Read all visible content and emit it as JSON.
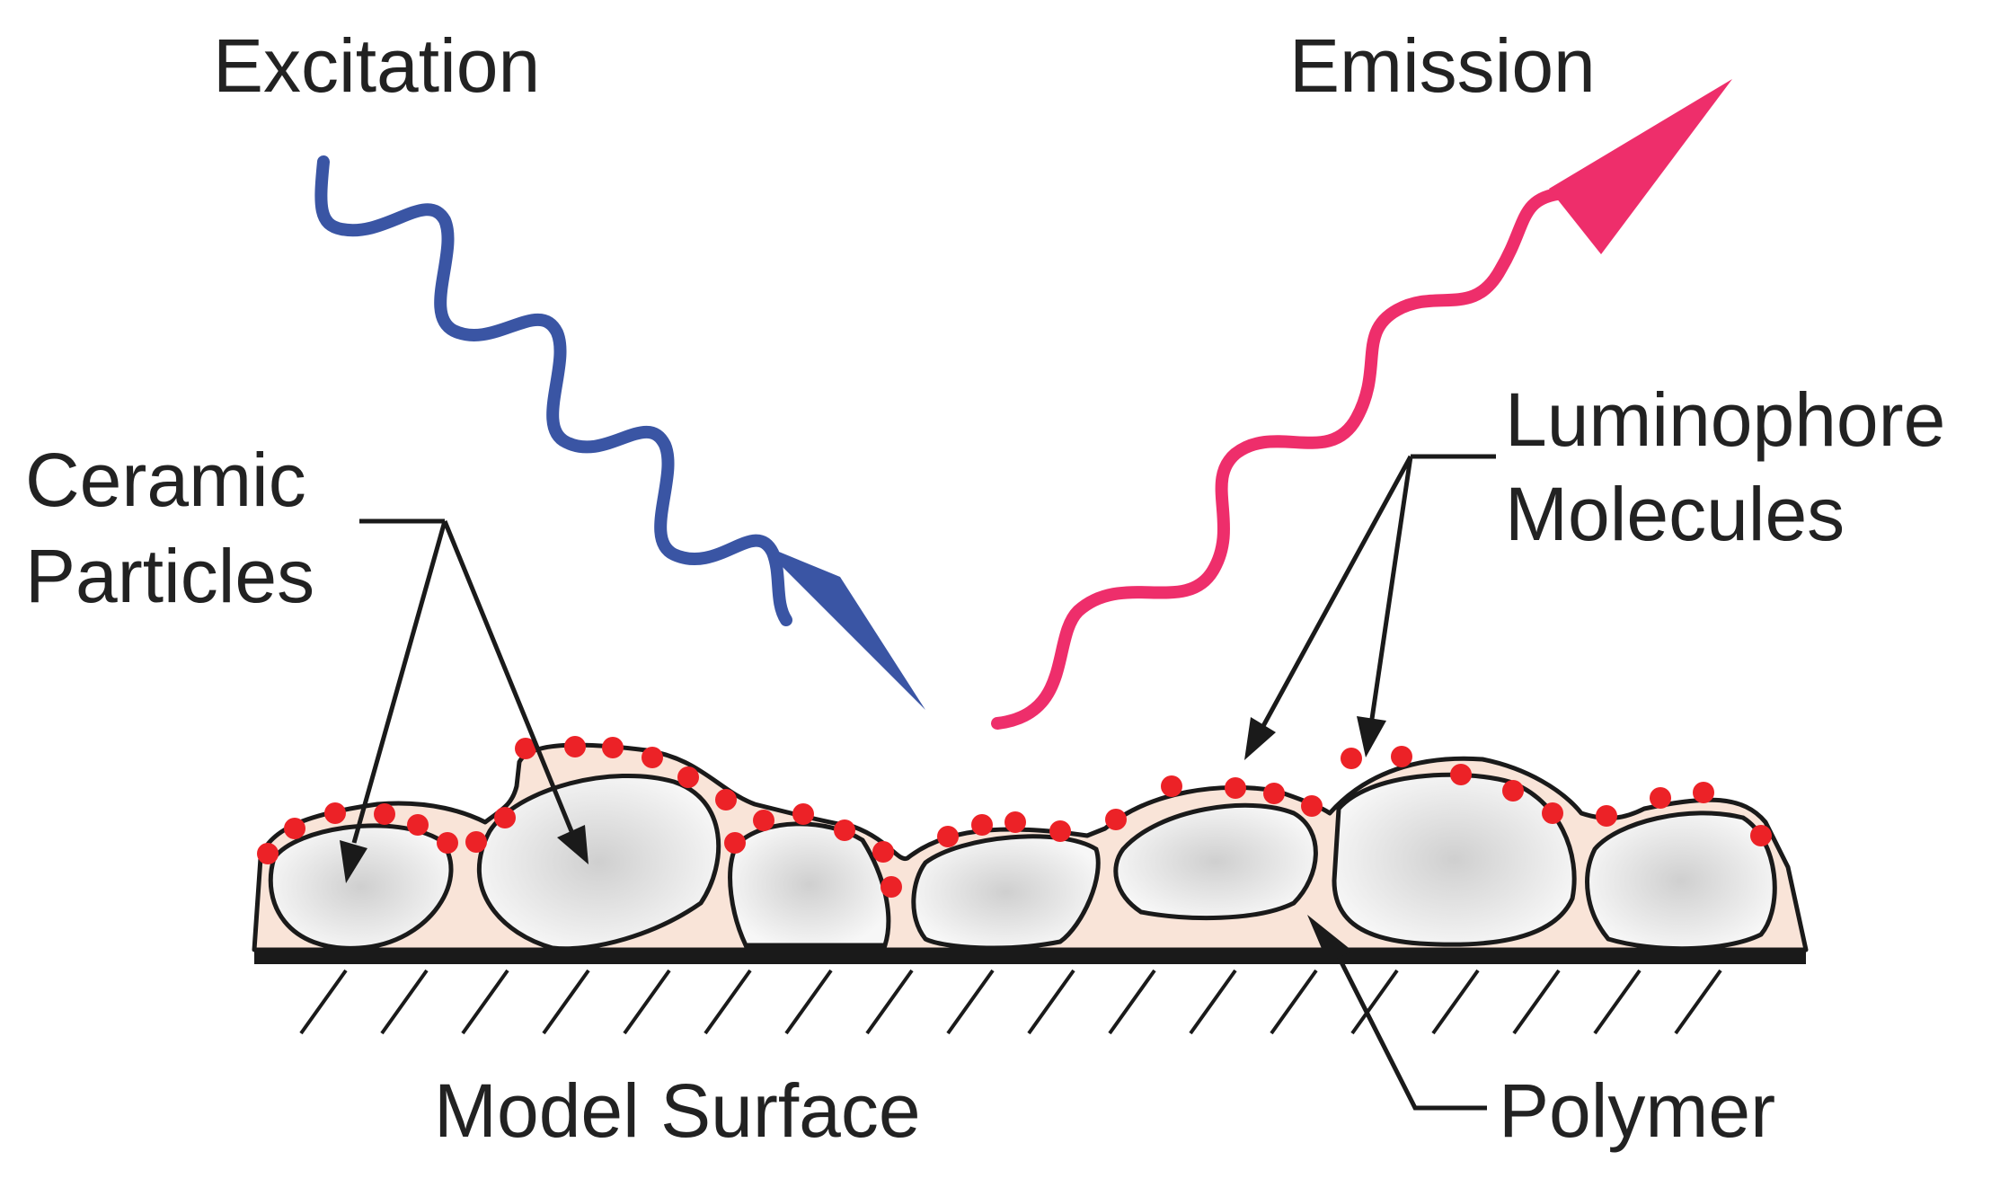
{
  "labels": {
    "excitation": "Excitation",
    "emission": "Emission",
    "ceramic_line1": "Ceramic",
    "ceramic_line2": "Particles",
    "luminophore_line1": "Luminophore",
    "luminophore_line2": "Molecules",
    "model_surface": "Model Surface",
    "polymer": "Polymer"
  },
  "colors": {
    "excitation": "#3a55a4",
    "emission": "#ee2e6b",
    "luminophore_dot": "#ec2227",
    "polymer": "#f9e4d8",
    "particle_edge": "#f7f7f7",
    "particle_center": "#cfcfcf"
  },
  "icons": {
    "excitation_arrow": "wavy-arrow-down",
    "emission_arrow": "wavy-arrow-up"
  }
}
